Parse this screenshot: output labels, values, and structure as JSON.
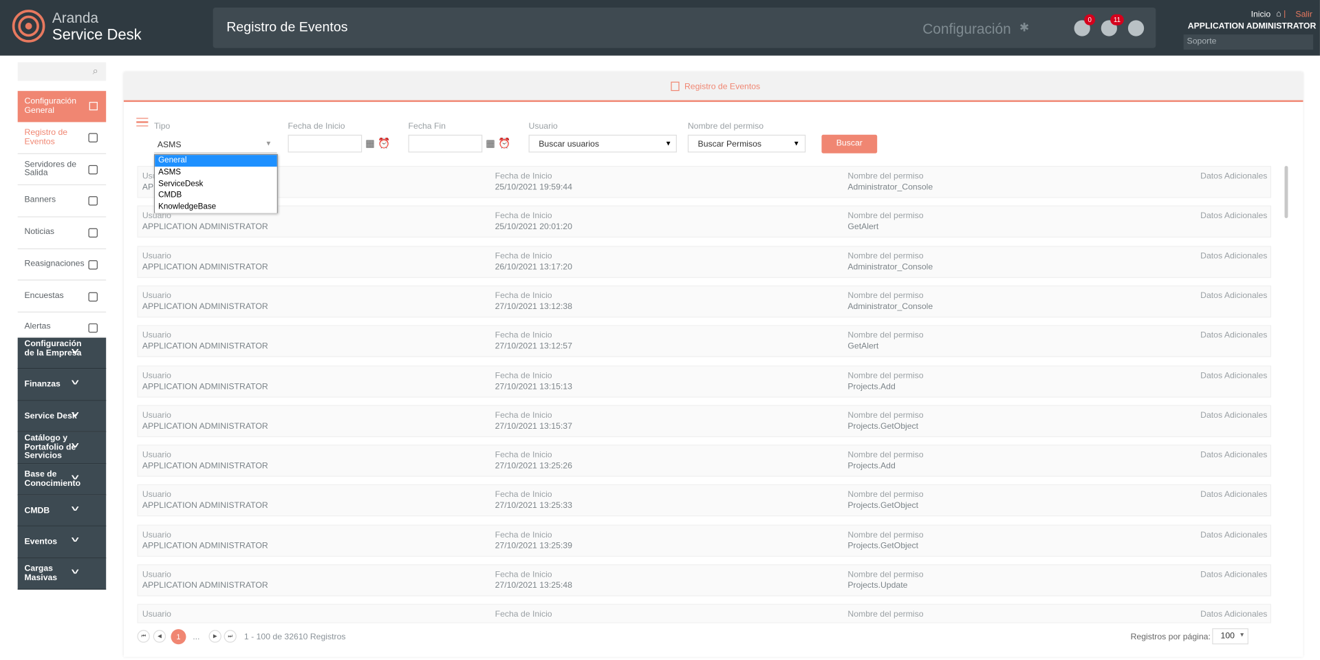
{
  "header": {
    "brand_top": "Aranda",
    "brand_bottom": "Service Desk",
    "page_title": "Registro de Eventos",
    "config": "Configuración",
    "cloud_badge": "0",
    "bell_badge": "11",
    "home": "Inicio",
    "logout": "Salir",
    "user": "APPLICATION ADMINISTRATOR",
    "role": "Soporte"
  },
  "sidebar": {
    "active_group": "Configuración General",
    "items": [
      "Registro de Eventos",
      "Servidores de Salida",
      "Banners",
      "Noticias",
      "Reasignaciones",
      "Encuestas",
      "Alertas"
    ],
    "groups": [
      "Configuración de la Empresa",
      "Finanzas",
      "Service Desk",
      "Catálogo y Portafolio de Servicios",
      "Base de Conocimiento",
      "CMDB",
      "Eventos",
      "Cargas Masivas"
    ]
  },
  "panel": {
    "title": "Registro de Eventos"
  },
  "filters": {
    "tipo_label": "Tipo",
    "tipo_value": "ASMS",
    "tipo_options": [
      "General",
      "ASMS",
      "ServiceDesk",
      "CMDB",
      "KnowledgeBase"
    ],
    "start_label": "Fecha de Inicio",
    "end_label": "Fecha Fin",
    "user_label": "Usuario",
    "user_placeholder": "Buscar usuarios",
    "perm_label": "Nombre del permiso",
    "perm_placeholder": "Buscar Permisos",
    "search_button": "Buscar"
  },
  "columns": {
    "user": "Usuario",
    "date": "Fecha de Inicio",
    "permission": "Nombre del permiso",
    "extra": "Datos Adicionales"
  },
  "rows": [
    {
      "user": "APPLICATION ADMINISTRATOR",
      "date": "25/10/2021 19:59:44",
      "permission": "Administrator_Console"
    },
    {
      "user": "APPLICATION ADMINISTRATOR",
      "date": "25/10/2021 20:01:20",
      "permission": "GetAlert"
    },
    {
      "user": "APPLICATION ADMINISTRATOR",
      "date": "26/10/2021 13:17:20",
      "permission": "Administrator_Console"
    },
    {
      "user": "APPLICATION ADMINISTRATOR",
      "date": "27/10/2021 13:12:38",
      "permission": "Administrator_Console"
    },
    {
      "user": "APPLICATION ADMINISTRATOR",
      "date": "27/10/2021 13:12:57",
      "permission": "GetAlert"
    },
    {
      "user": "APPLICATION ADMINISTRATOR",
      "date": "27/10/2021 13:15:13",
      "permission": "Projects.Add"
    },
    {
      "user": "APPLICATION ADMINISTRATOR",
      "date": "27/10/2021 13:15:37",
      "permission": "Projects.GetObject"
    },
    {
      "user": "APPLICATION ADMINISTRATOR",
      "date": "27/10/2021 13:25:26",
      "permission": "Projects.Add"
    },
    {
      "user": "APPLICATION ADMINISTRATOR",
      "date": "27/10/2021 13:25:33",
      "permission": "Projects.GetObject"
    },
    {
      "user": "APPLICATION ADMINISTRATOR",
      "date": "27/10/2021 13:25:39",
      "permission": "Projects.GetObject"
    },
    {
      "user": "APPLICATION ADMINISTRATOR",
      "date": "27/10/2021 13:25:48",
      "permission": "Projects.Update"
    }
  ],
  "pagination": {
    "current_page": "1",
    "ellipsis": "...",
    "range": "1 - 100 de 32610 Registros",
    "per_page_label": "Registros por página:",
    "per_page": "100"
  }
}
